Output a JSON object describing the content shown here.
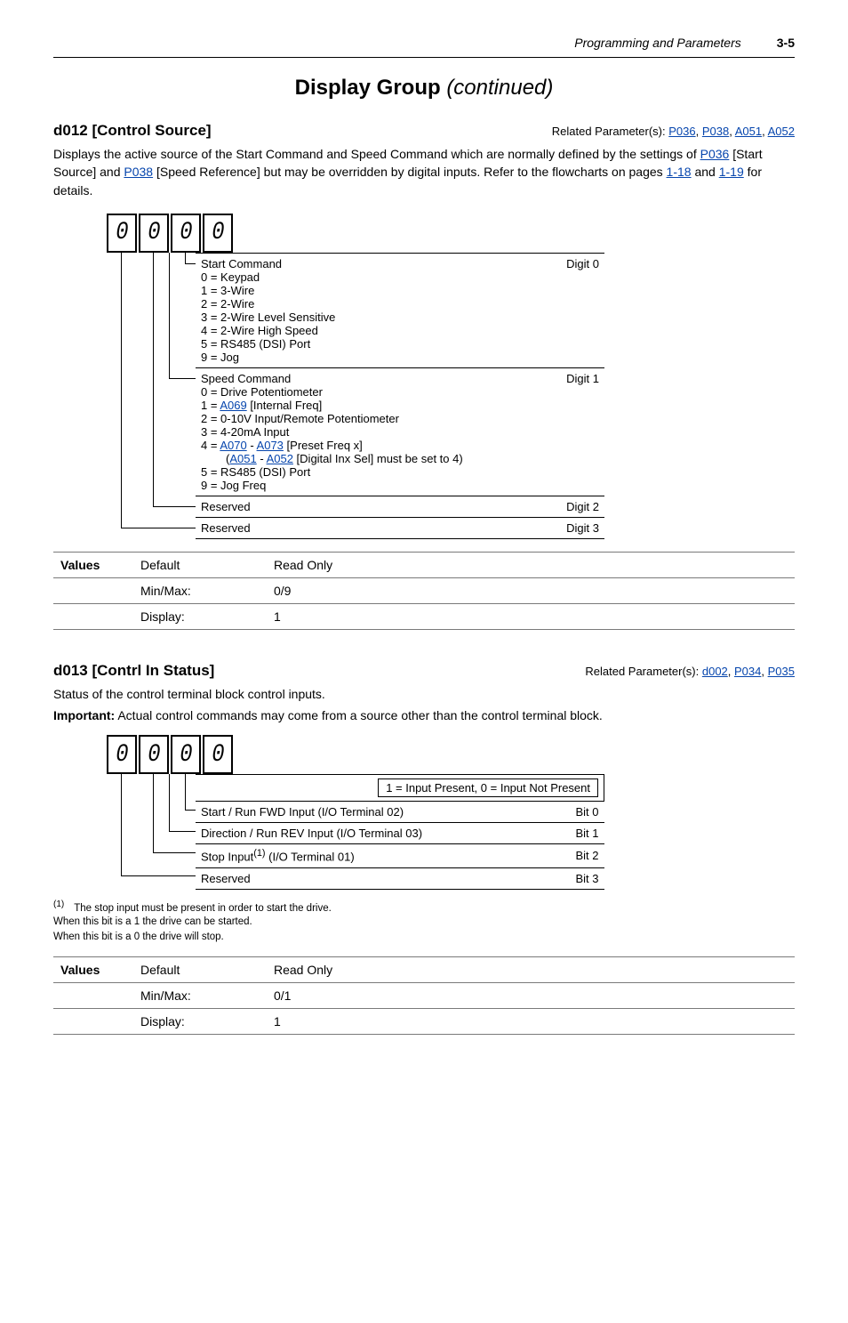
{
  "page": {
    "section_title": "Programming and Parameters",
    "page_num": "3-5"
  },
  "group_title": "Display Group",
  "group_title_cont": "(continued)",
  "d012": {
    "label": "d012 [Control Source]",
    "related_prefix": "Related Parameter(s): ",
    "related_links": [
      "P036",
      "P038",
      "A051",
      "A052"
    ],
    "body_parts": [
      "Displays the active source of the Start Command and Speed Command which are normally defined by the settings of ",
      " [Start Source] and ",
      " [Speed Reference] but may be overridden by digital inputs. Refer to the flowcharts on pages ",
      " and ",
      " for details."
    ],
    "body_links": [
      "P036",
      "P038",
      "1-18",
      "1-19"
    ],
    "digits": [
      {
        "title": "Start Command",
        "lines": [
          "0 = Keypad",
          "1 = 3-Wire",
          "2 = 2-Wire",
          "3 = 2-Wire Level Sensitive",
          "4 = 2-Wire High Speed",
          "5 = RS485 (DSI) Port",
          "9 = Jog"
        ],
        "digit": "Digit 0"
      },
      {
        "title": "Speed Command",
        "lines_rich": [
          {
            "t": "0 = Drive Potentiometer"
          },
          {
            "pre": "1 = ",
            "link": "A069",
            "post": " [Internal Freq]"
          },
          {
            "t": "2 = 0-10V Input/Remote Potentiometer"
          },
          {
            "t": "3 = 4-20mA Input"
          },
          {
            "pre": "4 = ",
            "link": "A070",
            "mid": " - ",
            "link2": "A073",
            "post": " [Preset Freq x]"
          },
          {
            "indent": true,
            "pre": "(",
            "link": "A051",
            "mid": " - ",
            "link2": "A052",
            "post": " [Digital Inx Sel] must be set to 4)"
          },
          {
            "t": "5 = RS485 (DSI) Port"
          },
          {
            "t": "9 = Jog Freq"
          }
        ],
        "digit": "Digit 1"
      },
      {
        "title": "Reserved",
        "digit": "Digit 2"
      },
      {
        "title": "Reserved",
        "digit": "Digit 3"
      }
    ],
    "values": {
      "label": "Values",
      "rows": [
        {
          "k": "Default",
          "v": "Read Only"
        },
        {
          "k": "Min/Max:",
          "v": "0/9"
        },
        {
          "k": "Display:",
          "v": "1"
        }
      ]
    }
  },
  "d013": {
    "label": "d013 [Contrl In Status]",
    "related_prefix": "Related Parameter(s): ",
    "related_links": [
      "d002",
      "P034",
      "P035"
    ],
    "body": "Status of the control terminal block control inputs.",
    "important_label": "Important:",
    "important_text": " Actual control commands may come from a source other than the control terminal block.",
    "bit_header": "1 = Input Present, 0 = Input Not Present",
    "rows": [
      {
        "t": "Start / Run FWD Input (I/O Terminal 02)",
        "b": "Bit 0"
      },
      {
        "t": "Direction / Run REV Input (I/O Terminal 03)",
        "b": "Bit 1"
      },
      {
        "t_html": "Stop Input<sup>(1)</sup> (I/O Terminal 01)",
        "b": "Bit 2"
      },
      {
        "t": "Reserved",
        "b": "Bit 3"
      }
    ],
    "footnote_num": "(1)",
    "footnote": "The stop input must be present in order to start the drive.\nWhen this bit is a 1 the drive can be started.\nWhen this bit is a 0 the drive will stop.",
    "values": {
      "label": "Values",
      "rows": [
        {
          "k": "Default",
          "v": "Read Only"
        },
        {
          "k": "Min/Max:",
          "v": "0/1"
        },
        {
          "k": "Display:",
          "v": "1"
        }
      ]
    }
  }
}
